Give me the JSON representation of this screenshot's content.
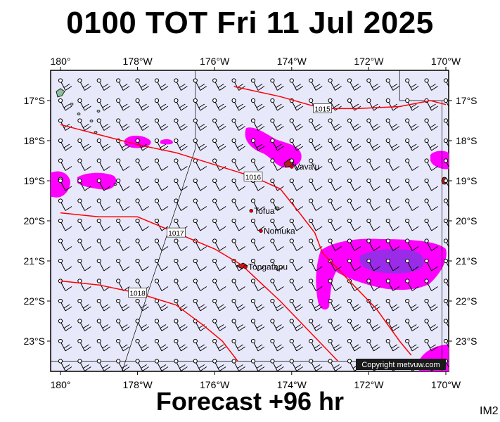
{
  "title": "0100 TOT Fri 11 Jul 2025",
  "footer": "Forecast +96 hr",
  "corner_label": "IM2",
  "copyright": "Copyright metvuw.com",
  "colors": {
    "ocean": "#e8e8fb",
    "rain_light": "#ff00ff",
    "rain_heavy": "#9a2be8",
    "isobar": "#ff0000",
    "land": "#8fbf9f"
  },
  "axes": {
    "lon_labels": [
      "180°",
      "178°W",
      "176°W",
      "174°W",
      "172°W",
      "170°W"
    ],
    "lat_labels": [
      "17°S",
      "18°S",
      "19°S",
      "20°S",
      "21°S",
      "22°S",
      "23°S"
    ]
  },
  "places": [
    {
      "name": "Vava'u",
      "lon": -174.0,
      "lat": -18.65
    },
    {
      "name": "Tofua",
      "lon": -175.05,
      "lat": -19.75
    },
    {
      "name": "Nomuka",
      "lon": -174.8,
      "lat": -20.25
    },
    {
      "name": "Tongatapu",
      "lon": -175.2,
      "lat": -21.15
    }
  ],
  "isobars": [
    {
      "label": "1015",
      "points": [
        [
          -175.5,
          -16.65
        ],
        [
          -174.3,
          -16.9
        ],
        [
          -173.2,
          -17.2
        ],
        [
          -172.3,
          -17.2
        ],
        [
          -171.2,
          -17.15
        ],
        [
          -170.4,
          -17.0
        ],
        [
          -170.0,
          -17.1
        ]
      ]
    },
    {
      "label": "1016",
      "points": [
        [
          -180,
          -17.6
        ],
        [
          -179.2,
          -17.8
        ],
        [
          -178.0,
          -18.1
        ],
        [
          -177.0,
          -18.3
        ],
        [
          -176.0,
          -18.6
        ],
        [
          -175.0,
          -18.9
        ],
        [
          -174.3,
          -19.2
        ],
        [
          -173.8,
          -19.8
        ],
        [
          -173.4,
          -20.3
        ],
        [
          -173.2,
          -20.8
        ],
        [
          -172.8,
          -21.2
        ],
        [
          -172.3,
          -21.7
        ],
        [
          -171.8,
          -22.2
        ],
        [
          -171.5,
          -22.6
        ],
        [
          -171.2,
          -23.0
        ],
        [
          -170.9,
          -23.35
        ]
      ]
    },
    {
      "label": "1017",
      "points": [
        [
          -180,
          -19.8
        ],
        [
          -179.0,
          -19.9
        ],
        [
          -178.0,
          -19.9
        ],
        [
          -177.0,
          -20.3
        ],
        [
          -176.0,
          -20.7
        ],
        [
          -175.3,
          -21.1
        ],
        [
          -174.8,
          -21.55
        ],
        [
          -174.3,
          -22.0
        ],
        [
          -173.8,
          -22.5
        ],
        [
          -173.3,
          -23.0
        ],
        [
          -172.8,
          -23.5
        ]
      ]
    },
    {
      "label": "1018",
      "points": [
        [
          -180,
          -21.5
        ],
        [
          -179.0,
          -21.6
        ],
        [
          -178.0,
          -21.8
        ],
        [
          -177.0,
          -22.1
        ],
        [
          -176.3,
          -22.6
        ],
        [
          -175.8,
          -23.0
        ],
        [
          -175.4,
          -23.5
        ]
      ]
    }
  ]
}
